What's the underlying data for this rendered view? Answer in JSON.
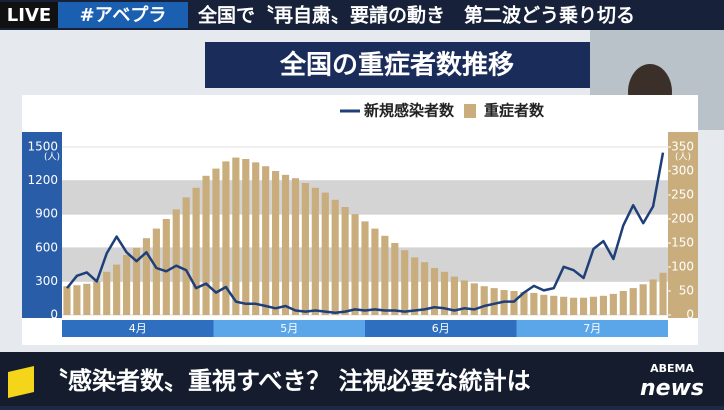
{
  "header": {
    "live": "LIVE",
    "tag": "#アベプラ",
    "headline": "全国で〝再自粛〟要請の動き　第二波どう乗り切る"
  },
  "chart_data": {
    "type": "bar-line",
    "title": "全国の重症者数推移",
    "months": [
      "4月",
      "5月",
      "6月",
      "7月"
    ],
    "y_unit": "(人)",
    "y2_unit": "(人)",
    "series": [
      {
        "name": "新規感染者数",
        "type": "line",
        "color": "#1f3f7a",
        "axis": "y",
        "values": [
          240,
          350,
          380,
          300,
          550,
          700,
          560,
          480,
          560,
          420,
          390,
          440,
          400,
          240,
          280,
          200,
          250,
          120,
          100,
          100,
          80,
          60,
          80,
          40,
          30,
          40,
          30,
          20,
          30,
          50,
          40,
          50,
          40,
          40,
          30,
          40,
          50,
          70,
          60,
          40,
          60,
          50,
          80,
          100,
          120,
          120,
          200,
          260,
          220,
          240,
          430,
          400,
          330,
          590,
          660,
          500,
          800,
          980,
          820,
          970,
          1450
        ]
      },
      {
        "name": "重症者数",
        "type": "bar",
        "color": "#c9ad7c",
        "axis": "y2",
        "values": [
          60,
          62,
          65,
          70,
          90,
          105,
          125,
          140,
          160,
          180,
          200,
          220,
          245,
          265,
          290,
          305,
          320,
          328,
          325,
          318,
          310,
          300,
          292,
          285,
          275,
          265,
          255,
          240,
          225,
          210,
          195,
          180,
          165,
          150,
          135,
          120,
          110,
          98,
          90,
          80,
          72,
          66,
          60,
          56,
          52,
          50,
          48,
          46,
          42,
          40,
          38,
          36,
          36,
          38,
          40,
          44,
          50,
          56,
          64,
          74,
          88
        ]
      }
    ],
    "ylim": [
      0,
      1500
    ],
    "yticks": [
      0,
      300,
      600,
      900,
      1200,
      1500
    ],
    "y2lim": [
      0,
      350
    ],
    "y2ticks": [
      0,
      50,
      100,
      150,
      200,
      250,
      300,
      350
    ],
    "grid": true
  },
  "caption": "〝感染者数〟重視すべき？ 注視必要な統計は",
  "logo": {
    "brand": "ABEMA",
    "name": "news"
  }
}
